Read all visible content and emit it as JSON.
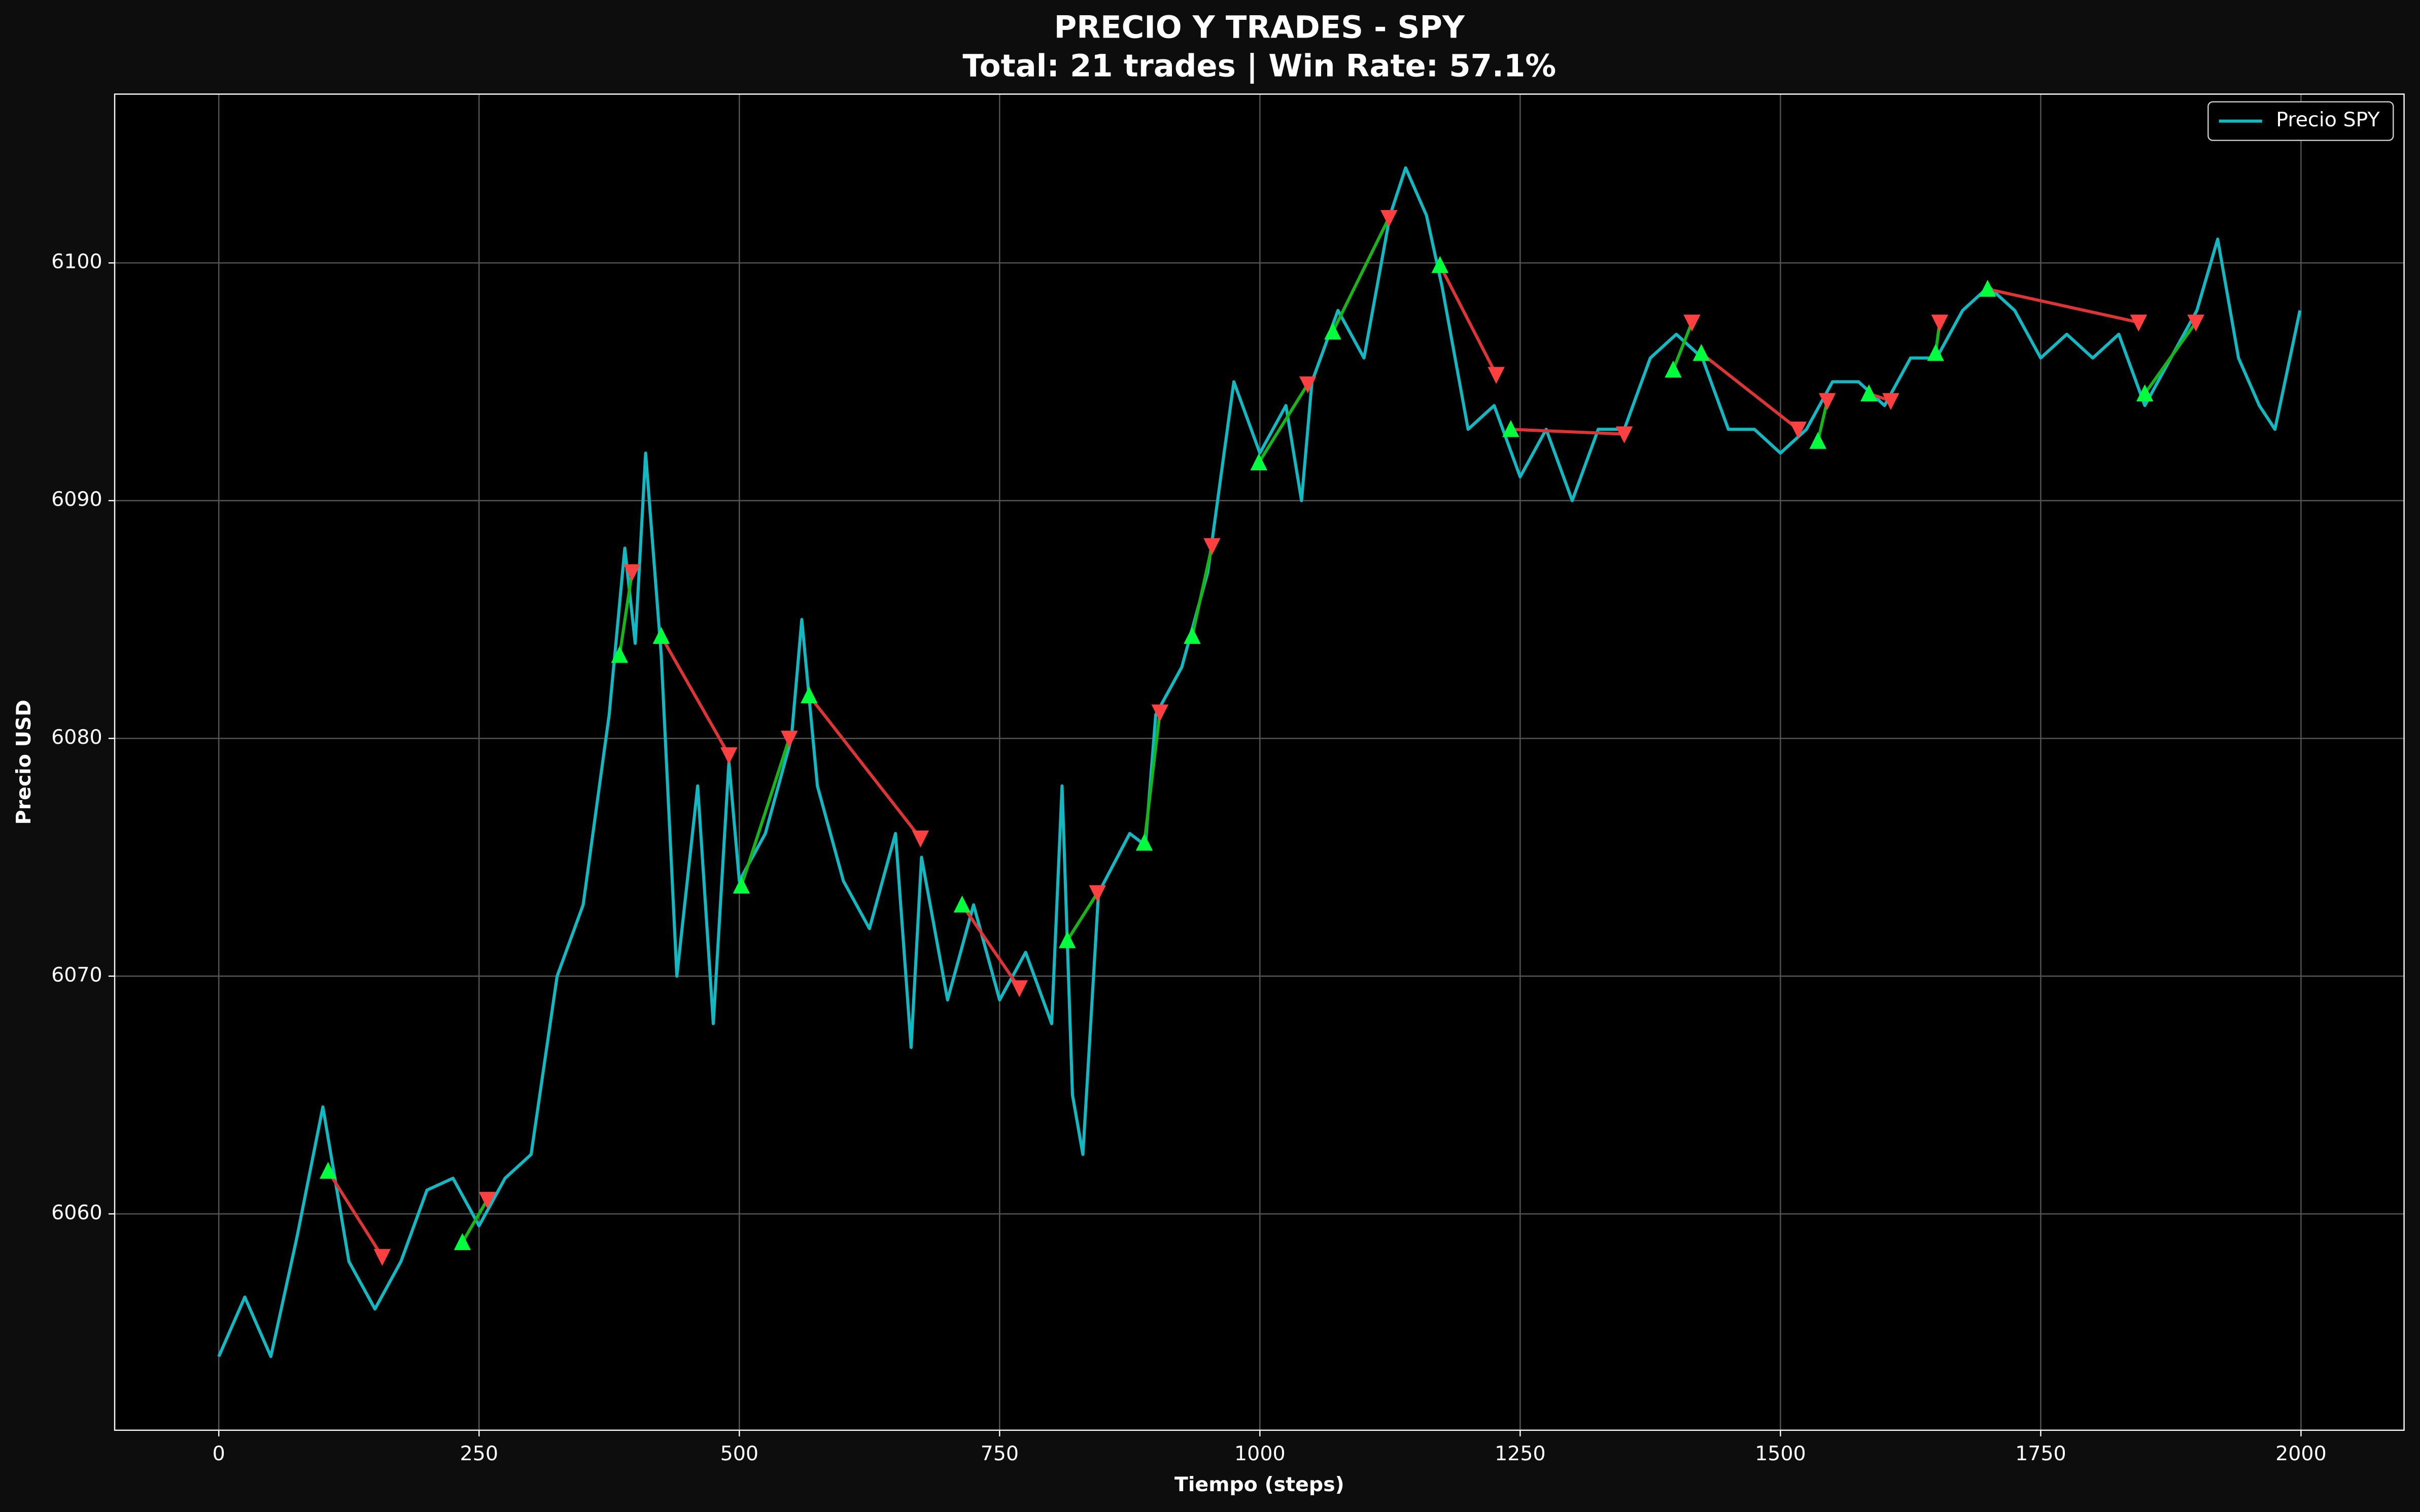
{
  "chart_data": {
    "type": "line",
    "title": "PRECIO Y TRADES - SPY",
    "subtitle": "Total: 21 trades | Win Rate: 57.1%",
    "xlabel": "Tiempo (steps)",
    "ylabel": "Precio USD",
    "xlim": [
      -100,
      2099
    ],
    "ylim": [
      6050.9,
      6107.1
    ],
    "xticks": [
      0,
      250,
      500,
      750,
      1000,
      1250,
      1500,
      1750,
      2000
    ],
    "yticks": [
      6060,
      6070,
      6080,
      6090,
      6100
    ],
    "grid": true,
    "legend": "upper right",
    "series": [
      {
        "name": "Precio SPY",
        "color": "#13b9c2",
        "x": [
          0,
          25,
          50,
          75,
          100,
          125,
          150,
          175,
          200,
          225,
          250,
          275,
          300,
          325,
          350,
          375,
          390,
          400,
          410,
          425,
          440,
          460,
          475,
          490,
          500,
          525,
          550,
          560,
          575,
          600,
          625,
          650,
          665,
          675,
          700,
          725,
          750,
          775,
          800,
          810,
          820,
          830,
          845,
          875,
          890,
          900,
          925,
          950,
          975,
          1000,
          1025,
          1040,
          1050,
          1075,
          1100,
          1125,
          1140,
          1160,
          1175,
          1200,
          1225,
          1250,
          1275,
          1300,
          1325,
          1350,
          1375,
          1400,
          1425,
          1450,
          1475,
          1500,
          1525,
          1550,
          1575,
          1600,
          1625,
          1650,
          1675,
          1700,
          1725,
          1750,
          1775,
          1800,
          1825,
          1850,
          1875,
          1900,
          1920,
          1940,
          1960,
          1975,
          1999
        ],
        "values": [
          6054,
          6056.5,
          6054,
          6059,
          6064.5,
          6058,
          6056,
          6058,
          6061,
          6061.5,
          6059.5,
          6061.5,
          6062.5,
          6070,
          6073,
          6081,
          6088,
          6084,
          6092,
          6083.5,
          6070,
          6078,
          6068,
          6079,
          6074,
          6076,
          6080,
          6085,
          6078,
          6074,
          6072,
          6076,
          6067,
          6075,
          6069,
          6073,
          6069,
          6071,
          6068,
          6078,
          6065,
          6062.5,
          6073.5,
          6076,
          6075.5,
          6081,
          6083,
          6087,
          6095,
          6092,
          6094,
          6090,
          6095,
          6098,
          6096,
          6102,
          6104,
          6102,
          6099,
          6093,
          6094,
          6091,
          6093,
          6090,
          6093,
          6093,
          6096,
          6097,
          6096,
          6093,
          6093,
          6092,
          6093,
          6095,
          6095,
          6094,
          6096,
          6096,
          6098,
          6099,
          6098,
          6096,
          6097,
          6096,
          6097,
          6094,
          6096,
          6098,
          6101,
          6096,
          6094,
          6093,
          6098
        ]
      }
    ],
    "entries": {
      "color": "#00ff3c",
      "x": [
        105,
        234,
        385,
        425,
        502,
        567,
        714,
        815,
        889,
        935,
        999,
        1070,
        1173,
        1241,
        1397,
        1424,
        1536,
        1585,
        1649,
        1699,
        1850
      ],
      "values": [
        6061.8,
        6058.8,
        6083.5,
        6084.3,
        6073.8,
        6081.8,
        6073.0,
        6071.5,
        6075.6,
        6084.3,
        6091.6,
        6097.1,
        6099.9,
        6093.0,
        6095.5,
        6096.2,
        6092.5,
        6094.5,
        6096.2,
        6098.9,
        6094.5
      ]
    },
    "exits": {
      "color": "#ff4040",
      "x": [
        157,
        258,
        397,
        490,
        548,
        674,
        769,
        844,
        904,
        954,
        1046,
        1124,
        1227,
        1350,
        1415,
        1517,
        1545,
        1606,
        1653,
        1844,
        1899
      ],
      "values": [
        6058.2,
        6060.6,
        6087.0,
        6079.3,
        6080.0,
        6075.8,
        6069.5,
        6073.5,
        6081.1,
        6088.1,
        6094.9,
        6101.9,
        6095.3,
        6092.8,
        6097.5,
        6093.0,
        6094.2,
        6094.2,
        6097.5,
        6097.5,
        6097.5
      ]
    },
    "win_color": "#19b419",
    "loss_color": "#dd3535"
  }
}
